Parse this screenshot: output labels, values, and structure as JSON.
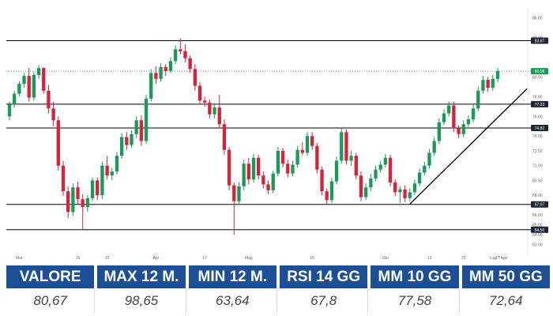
{
  "chart_data": {
    "type": "candlestick",
    "colors": {
      "up": "#1a9a59",
      "down": "#d8213a",
      "trend": "#000000",
      "level": "#000000",
      "last_price": "#1a9a59"
    },
    "y_range": [
      62.0,
      87.0
    ],
    "y_ticks": [
      "86.00",
      "84.00",
      "80.00",
      "78.00",
      "76.00",
      "74.00",
      "72.50",
      "71.00",
      "69.50",
      "68.00",
      "66.00",
      "65.00",
      "64.00",
      "63.00"
    ],
    "x_ticks": [
      "Mar",
      "15",
      "22",
      "Apr",
      "17",
      "Mag",
      "15",
      "Giu",
      "13",
      "22",
      "Lug",
      "17",
      "Ago"
    ],
    "levels": [
      {
        "label": "83.67",
        "value": 83.67,
        "color": "#000000"
      },
      {
        "label": "77.23",
        "value": 77.23,
        "color": "#000000"
      },
      {
        "label": "74.82",
        "value": 74.82,
        "color": "#000000"
      },
      {
        "label": "67.07",
        "value": 67.07,
        "color": "#000000"
      },
      {
        "label": "64.50",
        "value": 64.5,
        "color": "#000000"
      }
    ],
    "last_price": {
      "label": "80.58",
      "value": 80.58
    },
    "trendline": {
      "from": {
        "index": 82,
        "value": 67.1
      },
      "to": {
        "index": 106,
        "value": 78.8
      }
    },
    "candles": [
      [
        76.0,
        77.5,
        75.6,
        77.2
      ],
      [
        77.2,
        78.6,
        76.9,
        78.3
      ],
      [
        78.3,
        79.6,
        78.0,
        79.3
      ],
      [
        79.3,
        80.4,
        78.9,
        80.1
      ],
      [
        80.1,
        80.9,
        77.5,
        77.9
      ],
      [
        77.9,
        80.5,
        77.6,
        80.2
      ],
      [
        80.2,
        81.2,
        79.8,
        80.9
      ],
      [
        80.9,
        81.0,
        78.3,
        78.6
      ],
      [
        78.6,
        79.2,
        76.3,
        76.8
      ],
      [
        76.8,
        77.5,
        75.0,
        75.6
      ],
      [
        75.6,
        76.0,
        70.5,
        71.0
      ],
      [
        71.0,
        71.5,
        67.9,
        68.4
      ],
      [
        68.4,
        68.9,
        65.7,
        66.3
      ],
      [
        66.3,
        69.2,
        65.9,
        68.8
      ],
      [
        68.8,
        69.4,
        67.1,
        67.6
      ],
      [
        67.6,
        68.1,
        64.5,
        66.8
      ],
      [
        66.8,
        68.0,
        66.3,
        67.7
      ],
      [
        67.7,
        69.8,
        67.4,
        69.5
      ],
      [
        69.5,
        69.8,
        67.5,
        68.0
      ],
      [
        68.0,
        71.4,
        67.6,
        71.0
      ],
      [
        71.0,
        72.0,
        69.6,
        70.0
      ],
      [
        70.0,
        70.8,
        69.5,
        70.4
      ],
      [
        70.4,
        72.4,
        70.1,
        72.0
      ],
      [
        72.0,
        74.3,
        71.7,
        73.9
      ],
      [
        73.9,
        74.4,
        72.6,
        73.1
      ],
      [
        73.1,
        74.6,
        72.8,
        74.2
      ],
      [
        74.2,
        76.0,
        73.8,
        75.6
      ],
      [
        75.6,
        76.1,
        73.0,
        73.5
      ],
      [
        73.5,
        78.2,
        73.2,
        77.8
      ],
      [
        77.8,
        80.8,
        77.5,
        80.4
      ],
      [
        80.4,
        81.1,
        79.3,
        79.8
      ],
      [
        79.8,
        81.4,
        79.5,
        81.0
      ],
      [
        81.0,
        81.3,
        80.1,
        80.6
      ],
      [
        80.6,
        82.0,
        80.4,
        81.6
      ],
      [
        81.6,
        83.2,
        81.3,
        82.8
      ],
      [
        82.8,
        83.9,
        82.3,
        82.6
      ],
      [
        82.6,
        83.3,
        81.5,
        81.9
      ],
      [
        81.9,
        82.2,
        80.4,
        80.8
      ],
      [
        80.8,
        81.3,
        78.6,
        79.1
      ],
      [
        79.1,
        79.5,
        77.2,
        77.6
      ],
      [
        77.6,
        78.0,
        77.0,
        77.4
      ],
      [
        77.4,
        77.7,
        75.8,
        76.2
      ],
      [
        76.2,
        77.3,
        75.8,
        76.9
      ],
      [
        76.9,
        78.2,
        74.8,
        75.2
      ],
      [
        75.2,
        75.7,
        72.1,
        72.6
      ],
      [
        72.6,
        72.9,
        68.5,
        69.0
      ],
      [
        69.0,
        69.3,
        64.0,
        67.4
      ],
      [
        67.4,
        69.3,
        67.0,
        68.9
      ],
      [
        68.9,
        71.6,
        68.5,
        71.2
      ],
      [
        71.2,
        71.8,
        69.1,
        69.6
      ],
      [
        69.6,
        72.2,
        69.3,
        71.8
      ],
      [
        71.8,
        72.1,
        69.6,
        70.0
      ],
      [
        70.0,
        70.4,
        68.7,
        69.1
      ],
      [
        69.1,
        69.5,
        68.1,
        68.5
      ],
      [
        68.5,
        70.5,
        68.2,
        70.2
      ],
      [
        70.2,
        72.9,
        69.9,
        72.5
      ],
      [
        72.5,
        72.8,
        70.8,
        71.2
      ],
      [
        71.2,
        71.6,
        69.8,
        70.2
      ],
      [
        70.2,
        71.5,
        69.9,
        71.1
      ],
      [
        71.1,
        73.0,
        70.8,
        72.6
      ],
      [
        72.6,
        73.4,
        72.1,
        72.3
      ],
      [
        72.3,
        74.4,
        72.0,
        74.0
      ],
      [
        74.0,
        74.4,
        72.6,
        73.0
      ],
      [
        73.0,
        73.3,
        70.2,
        70.6
      ],
      [
        70.6,
        70.9,
        68.0,
        68.4
      ],
      [
        68.4,
        68.7,
        67.1,
        67.5
      ],
      [
        67.5,
        69.8,
        67.2,
        69.4
      ],
      [
        69.4,
        71.9,
        69.1,
        71.5
      ],
      [
        71.5,
        74.8,
        71.2,
        74.4
      ],
      [
        74.4,
        74.7,
        71.1,
        71.5
      ],
      [
        71.5,
        72.5,
        71.0,
        72.0
      ],
      [
        72.0,
        72.3,
        69.6,
        70.0
      ],
      [
        70.0,
        70.4,
        67.4,
        67.8
      ],
      [
        67.8,
        69.2,
        67.5,
        68.8
      ],
      [
        68.8,
        70.2,
        68.4,
        69.7
      ],
      [
        69.7,
        71.0,
        69.4,
        70.6
      ],
      [
        70.6,
        71.5,
        70.3,
        71.1
      ],
      [
        71.1,
        72.2,
        70.8,
        71.8
      ],
      [
        71.8,
        72.1,
        68.9,
        69.3
      ],
      [
        69.3,
        69.6,
        67.9,
        68.3
      ],
      [
        68.3,
        68.9,
        67.2,
        68.6
      ],
      [
        68.6,
        69.0,
        67.3,
        67.7
      ],
      [
        67.7,
        68.7,
        67.4,
        68.3
      ],
      [
        68.3,
        69.6,
        68.0,
        69.2
      ],
      [
        69.2,
        70.7,
        68.9,
        70.3
      ],
      [
        70.3,
        71.4,
        70.0,
        71.0
      ],
      [
        71.0,
        72.7,
        70.7,
        72.3
      ],
      [
        72.3,
        73.9,
        72.0,
        73.5
      ],
      [
        73.5,
        75.8,
        73.2,
        75.4
      ],
      [
        75.4,
        76.7,
        75.1,
        76.3
      ],
      [
        76.3,
        77.5,
        76.0,
        77.1
      ],
      [
        77.1,
        77.5,
        74.4,
        74.8
      ],
      [
        74.8,
        75.1,
        73.8,
        74.2
      ],
      [
        74.2,
        75.6,
        73.9,
        75.2
      ],
      [
        75.2,
        76.1,
        74.9,
        75.7
      ],
      [
        75.7,
        77.2,
        75.4,
        76.8
      ],
      [
        76.8,
        79.0,
        76.5,
        78.6
      ],
      [
        78.6,
        80.1,
        78.3,
        79.7
      ],
      [
        79.7,
        80.0,
        78.5,
        78.9
      ],
      [
        78.9,
        80.2,
        78.6,
        79.8
      ],
      [
        79.8,
        80.9,
        79.5,
        80.6
      ]
    ]
  },
  "stats": {
    "headers": [
      "VALORE",
      "MAX 12 M.",
      "MIN 12 M.",
      "RSI 14 GG",
      "MM 10 GG",
      "MM 50 GG"
    ],
    "values": [
      "80,67",
      "98,65",
      "63,64",
      "67,8",
      "77,58",
      "72,64"
    ]
  }
}
